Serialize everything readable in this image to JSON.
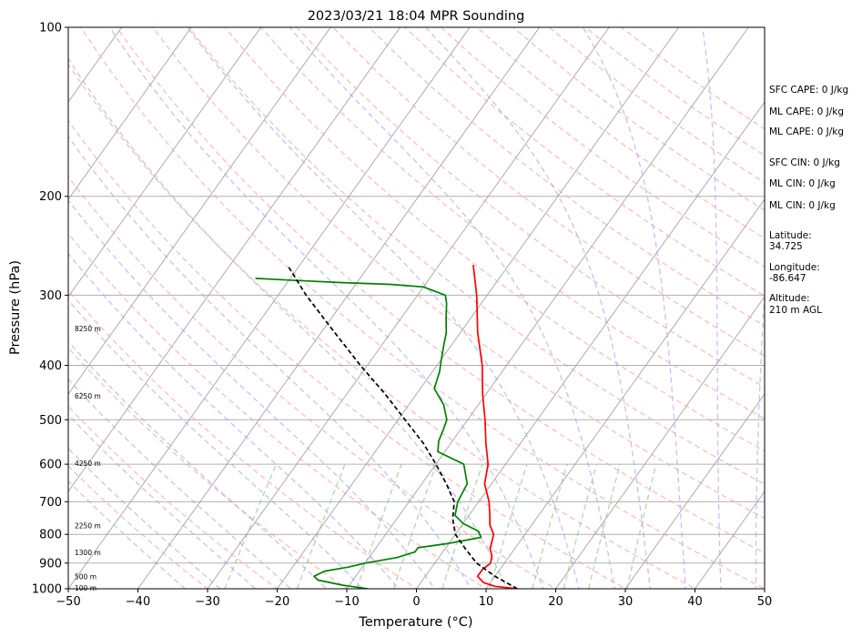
{
  "chart_data": {
    "type": "line",
    "title": "2023/03/21 18:04 MPR Sounding",
    "xlabel": "Temperature (°C)",
    "ylabel": "Pressure (hPa)",
    "xlim": [
      -50,
      50
    ],
    "ylim": [
      1000,
      100
    ],
    "y_scale": "log",
    "x_ticks": [
      -50,
      -40,
      -30,
      -20,
      -10,
      0,
      10,
      20,
      30,
      40,
      50
    ],
    "x_tick_labels": [
      "−50",
      "−40",
      "−30",
      "−20",
      "−10",
      "0",
      "10",
      "20",
      "30",
      "40",
      "50"
    ],
    "y_ticks": [
      1000,
      900,
      800,
      700,
      600,
      500,
      400,
      300,
      200,
      100
    ],
    "y_tick_labels": [
      "1000",
      "900",
      "800",
      "700",
      "600",
      "500",
      "400",
      "300",
      "200",
      "100"
    ],
    "skew": "skew-T log-P",
    "grid": true,
    "series": [
      {
        "role": "temperature",
        "color": "#ff0000",
        "points": [
          [
            1000,
            14.5
          ],
          [
            990,
            11
          ],
          [
            975,
            9
          ],
          [
            950,
            7.5
          ],
          [
            925,
            7.5
          ],
          [
            900,
            8
          ],
          [
            875,
            7.5
          ],
          [
            850,
            6.5
          ],
          [
            825,
            6
          ],
          [
            800,
            5.5
          ],
          [
            770,
            4
          ],
          [
            740,
            3
          ],
          [
            700,
            1.5
          ],
          [
            650,
            -1
          ],
          [
            600,
            -2.5
          ],
          [
            550,
            -5
          ],
          [
            500,
            -7.5
          ],
          [
            450,
            -10.5
          ],
          [
            400,
            -13.5
          ],
          [
            350,
            -17.5
          ],
          [
            300,
            -21.5
          ],
          [
            280,
            -23.5
          ],
          [
            265,
            -25.1
          ]
        ]
      },
      {
        "role": "dewpoint",
        "color": "#008000",
        "points": [
          [
            1000,
            -7
          ],
          [
            985,
            -11
          ],
          [
            965,
            -15
          ],
          [
            950,
            -16
          ],
          [
            930,
            -15
          ],
          [
            915,
            -12
          ],
          [
            900,
            -10
          ],
          [
            880,
            -6
          ],
          [
            860,
            -4
          ],
          [
            845,
            -4
          ],
          [
            830,
            0
          ],
          [
            810,
            4
          ],
          [
            790,
            3
          ],
          [
            765,
            0
          ],
          [
            740,
            -2
          ],
          [
            700,
            -3
          ],
          [
            650,
            -3.5
          ],
          [
            600,
            -6
          ],
          [
            570,
            -11
          ],
          [
            545,
            -12
          ],
          [
            520,
            -12.5
          ],
          [
            500,
            -13
          ],
          [
            470,
            -15
          ],
          [
            440,
            -18
          ],
          [
            410,
            -19
          ],
          [
            390,
            -20
          ],
          [
            370,
            -21
          ],
          [
            350,
            -22
          ],
          [
            330,
            -23.5
          ],
          [
            310,
            -25
          ],
          [
            300,
            -26
          ],
          [
            290,
            -30
          ],
          [
            287,
            -35
          ],
          [
            285,
            -42
          ],
          [
            282,
            -50
          ],
          [
            280,
            -55
          ]
        ]
      },
      {
        "role": "parcel",
        "color": "#000000",
        "dashed": true,
        "points": [
          [
            1000,
            14.5
          ],
          [
            950,
            10
          ],
          [
            900,
            6
          ],
          [
            850,
            3
          ],
          [
            800,
            0
          ],
          [
            750,
            -2
          ],
          [
            700,
            -3.5
          ],
          [
            650,
            -6.5
          ],
          [
            600,
            -10
          ],
          [
            550,
            -14
          ],
          [
            500,
            -19
          ],
          [
            450,
            -24.5
          ],
          [
            400,
            -31
          ],
          [
            350,
            -38
          ],
          [
            300,
            -46
          ],
          [
            265,
            -51.8
          ]
        ]
      }
    ],
    "height_labels": [
      {
        "text": "100 m",
        "pressure": 1000
      },
      {
        "text": "500 m",
        "pressure": 955
      },
      {
        "text": "1300 m",
        "pressure": 865
      },
      {
        "text": "2250 m",
        "pressure": 775
      },
      {
        "text": "4250 m",
        "pressure": 600
      },
      {
        "text": "6250 m",
        "pressure": 455
      },
      {
        "text": "8250 m",
        "pressure": 345
      }
    ]
  },
  "info_panel": {
    "sfc_cape": "SFC CAPE: 0 J/kg",
    "ml_cape": "ML CAPE: 0 J/kg",
    "ml_cape_2": "ML CAPE: 0 J/kg",
    "sfc_cin": "SFC CIN: 0 J/kg",
    "ml_cin": "ML CIN: 0 J/kg",
    "ml_cin_2": "ML CIN: 0 J/kg",
    "latitude_label": "Latitude:",
    "latitude_value": "34.725",
    "longitude_label": "Longitude:",
    "longitude_value": "-86.647",
    "altitude_label": "Altitude:",
    "altitude_value": "210 m AGL"
  },
  "colors": {
    "temperature": "#ff0000",
    "dewpoint": "#008000",
    "parcel": "#000000",
    "dry_adiabat": "#ff9999",
    "moist_adiabat": "#9999ff",
    "mixing_ratio": "#88cc88",
    "isotherm": "#999999"
  }
}
